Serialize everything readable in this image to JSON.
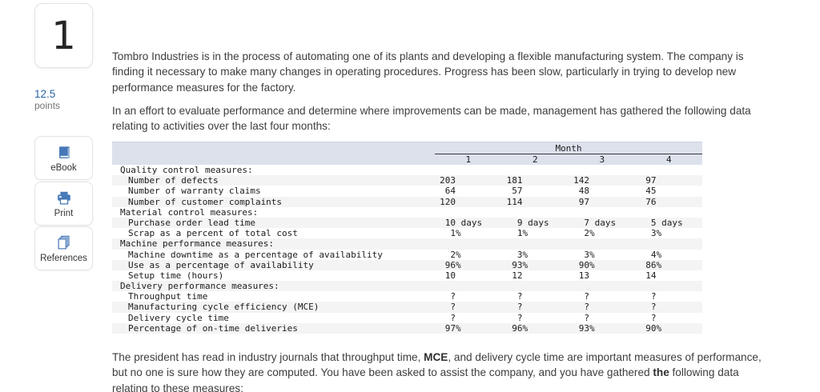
{
  "question": {
    "number": "1",
    "points_value": "12.5",
    "points_label": "points"
  },
  "sidebar": {
    "buttons": [
      {
        "label": "eBook",
        "icon": "ebook-icon"
      },
      {
        "label": "Print",
        "icon": "print-icon"
      },
      {
        "label": "References",
        "icon": "references-icon"
      }
    ]
  },
  "paragraphs": [
    {
      "lines": [
        [
          {
            "t": "Tombro Industries is in the process of automating one of its plants and developing a flexible manufacturing system. The company is"
          }
        ],
        [
          {
            "t": "finding it necessary to make many changes in operating procedures. Progress has been slow, particularly in trying to develop new"
          }
        ],
        [
          {
            "t": "performance measures for the factory."
          }
        ]
      ]
    },
    {
      "lines": [
        [
          {
            "t": "In an effort to evaluate performance and determine where improvements can be made, management has gathered the following data"
          }
        ],
        [
          {
            "t": "relating to activities over the last four months:"
          }
        ]
      ]
    },
    {
      "lines": [
        [
          {
            "t": "The president has read in industry journals that throughput time, "
          },
          {
            "t": "MCE",
            "b": true
          },
          {
            "t": ", and delivery cycle time are important measures of performance,"
          }
        ],
        [
          {
            "t": "but no one is sure how they are computed. You have been asked to assist the company, and you have gathered "
          },
          {
            "t": "the",
            "b": true
          },
          {
            "t": " following data"
          }
        ],
        [
          {
            "t": "relating to these measures:"
          }
        ]
      ]
    }
  ],
  "table": {
    "month_header": "Month",
    "columns": [
      "1",
      "2",
      "3",
      "4"
    ],
    "rows": [
      {
        "label": "Quality control measures:",
        "indent": 0,
        "values": [
          "",
          "",
          "",
          ""
        ]
      },
      {
        "label": "Number of defects",
        "indent": 1,
        "values": [
          "203",
          "181",
          "142",
          "97"
        ]
      },
      {
        "label": "Number of warranty claims",
        "indent": 1,
        "values": [
          "64",
          "57",
          "48",
          "45"
        ]
      },
      {
        "label": "Number of customer complaints",
        "indent": 1,
        "values": [
          "120",
          "114",
          "97",
          "76"
        ]
      },
      {
        "label": "Material control measures:",
        "indent": 0,
        "values": [
          "",
          "",
          "",
          ""
        ]
      },
      {
        "label": "Purchase order lead time",
        "indent": 1,
        "values": [
          "10 days",
          "9 days",
          "7 days",
          "5 days"
        ]
      },
      {
        "label": "Scrap as a percent of total cost",
        "indent": 1,
        "values": [
          "1%",
          "1%",
          "2%",
          "3%"
        ]
      },
      {
        "label": "Machine performance measures:",
        "indent": 0,
        "values": [
          "",
          "",
          "",
          ""
        ]
      },
      {
        "label": "Machine downtime as a percentage of availability",
        "indent": 1,
        "values": [
          "2%",
          "3%",
          "3%",
          "4%"
        ]
      },
      {
        "label": "Use as a percentage of availability",
        "indent": 1,
        "values": [
          "96%",
          "93%",
          "90%",
          "86%"
        ]
      },
      {
        "label": "Setup time (hours)",
        "indent": 1,
        "values": [
          "10",
          "12",
          "13",
          "14"
        ]
      },
      {
        "label": "Delivery performance measures:",
        "indent": 0,
        "values": [
          "",
          "",
          "",
          ""
        ]
      },
      {
        "label": "Throughput time",
        "indent": 1,
        "values": [
          "?",
          "?",
          "?",
          "?"
        ]
      },
      {
        "label": "Manufacturing cycle efficiency (MCE)",
        "indent": 1,
        "values": [
          "?",
          "?",
          "?",
          "?"
        ]
      },
      {
        "label": "Delivery cycle time",
        "indent": 1,
        "values": [
          "?",
          "?",
          "?",
          "?"
        ]
      },
      {
        "label": "Percentage of on-time deliveries",
        "indent": 1,
        "values": [
          "97%",
          "96%",
          "93%",
          "90%"
        ]
      }
    ]
  },
  "colors": {
    "accent_blue": "#2a63a5",
    "icon_blue": "#4678b8",
    "table_header_band": "#dce1ec",
    "row_stripe": "#f4f4f5"
  }
}
